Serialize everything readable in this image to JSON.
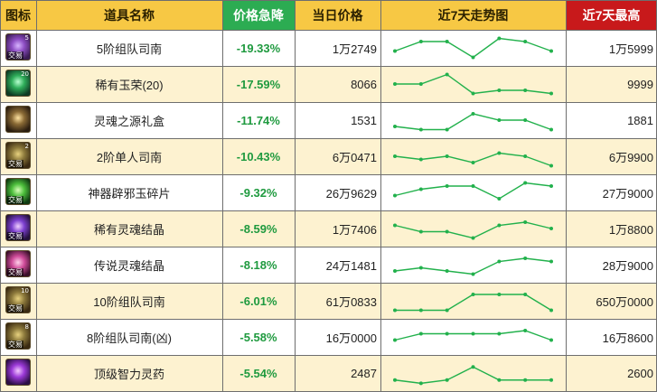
{
  "headers": {
    "icon": "图标",
    "name": "道具名称",
    "drop": "价格急降",
    "price": "当日价格",
    "trend": "近7天走势图",
    "max": "近7天最高"
  },
  "rows": [
    {
      "name": "5阶组队司南",
      "drop": "-19.33%",
      "price": "1万2749",
      "max": "1万5999",
      "icon_name": "purple-compass-icon",
      "icon_badge": "5",
      "trade": "交易",
      "trend": [
        3,
        6,
        6,
        1,
        7,
        6,
        3
      ]
    },
    {
      "name": "稀有玉荣(20)",
      "drop": "-17.59%",
      "price": "8066",
      "max": "9999",
      "icon_name": "green-jade-icon",
      "icon_badge": "20",
      "trade": "",
      "trend": [
        4,
        4,
        7,
        1,
        2,
        2,
        1
      ]
    },
    {
      "name": "灵魂之源礼盒",
      "drop": "-11.74%",
      "price": "1531",
      "max": "1881",
      "icon_name": "soul-giftbox-icon",
      "icon_badge": "",
      "trade": "",
      "trend": [
        2,
        1,
        1,
        6,
        4,
        4,
        1
      ]
    },
    {
      "name": "2阶单人司南",
      "drop": "-10.43%",
      "price": "6万0471",
      "max": "6万9900",
      "icon_name": "compass-icon",
      "icon_badge": "2",
      "trade": "交易",
      "trend": [
        4,
        3,
        4,
        2,
        5,
        4,
        1
      ]
    },
    {
      "name": "神器辟邪玉碎片",
      "drop": "-9.32%",
      "price": "26万9629",
      "max": "27万9000",
      "icon_name": "green-jade-shard-icon",
      "icon_badge": "",
      "trade": "交易",
      "trend": [
        3,
        5,
        6,
        6,
        2,
        7,
        6
      ]
    },
    {
      "name": "稀有灵魂结晶",
      "drop": "-8.59%",
      "price": "1万7406",
      "max": "1万8800",
      "icon_name": "purple-crystal-icon",
      "icon_badge": "",
      "trade": "交易",
      "trend": [
        5,
        3,
        3,
        1,
        5,
        6,
        4
      ]
    },
    {
      "name": "传说灵魂结晶",
      "drop": "-8.18%",
      "price": "24万1481",
      "max": "28万9000",
      "icon_name": "pink-crystal-icon",
      "icon_badge": "",
      "trade": "交易",
      "trend": [
        2,
        3,
        2,
        1,
        5,
        6,
        5
      ]
    },
    {
      "name": "10阶组队司南",
      "drop": "-6.01%",
      "price": "61万0833",
      "max": "650万0000",
      "icon_name": "compass-icon",
      "icon_badge": "10",
      "trade": "交易",
      "trend": [
        1,
        1,
        1,
        6,
        6,
        6,
        1
      ]
    },
    {
      "name": "8阶组队司南(凶)",
      "drop": "-5.58%",
      "price": "16万0000",
      "max": "16万8600",
      "icon_name": "compass-icon",
      "icon_badge": "8",
      "trade": "交易",
      "trend": [
        3,
        5,
        5,
        5,
        5,
        6,
        3
      ]
    },
    {
      "name": "顶级智力灵药",
      "drop": "-5.54%",
      "price": "2487",
      "max": "2600",
      "icon_name": "purple-potion-icon",
      "icon_badge": "",
      "trade": "",
      "trend": [
        2,
        1,
        2,
        6,
        2,
        2,
        2
      ]
    }
  ],
  "colors": {
    "header_yellow": "#f7c844",
    "header_green": "#2cac52",
    "header_red": "#c8191b",
    "row_alt": "#fdf2d0",
    "trend_line": "#22b14c",
    "drop_text": "#1f9a3f"
  }
}
